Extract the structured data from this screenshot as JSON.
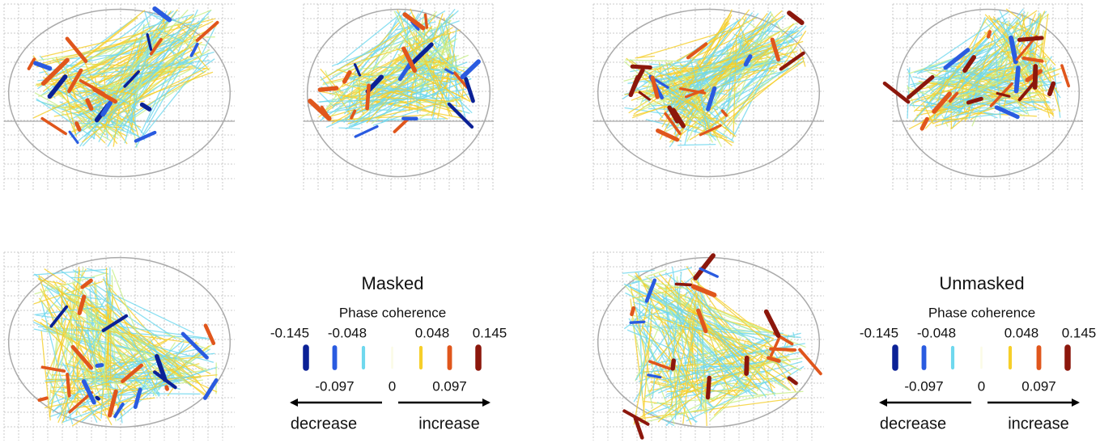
{
  "panels": [
    {
      "title": "Masked",
      "legend": {
        "title": "Phase coherence",
        "items": [
          {
            "value": -0.145,
            "color": "#0b2196"
          },
          {
            "value": -0.097,
            "color": "#2a5be0"
          },
          {
            "value": -0.048,
            "color": "#6fd8ee"
          },
          {
            "value": 0,
            "color": "#fbfbe6"
          },
          {
            "value": 0.048,
            "color": "#f6cf2a"
          },
          {
            "value": 0.097,
            "color": "#e0561c"
          },
          {
            "value": 0.145,
            "color": "#8c170c"
          }
        ],
        "decrease": "decrease",
        "increase": "increase"
      }
    },
    {
      "title": "Unmasked",
      "legend": {
        "title": "Phase coherence",
        "items": [
          {
            "value": -0.145,
            "color": "#0b2196"
          },
          {
            "value": -0.097,
            "color": "#2a5be0"
          },
          {
            "value": -0.048,
            "color": "#6fd8ee"
          },
          {
            "value": 0,
            "color": "#fbfbe6"
          },
          {
            "value": 0.048,
            "color": "#f6cf2a"
          },
          {
            "value": 0.097,
            "color": "#e0561c"
          },
          {
            "value": 0.145,
            "color": "#8c170c"
          }
        ],
        "decrease": "decrease",
        "increase": "increase"
      }
    }
  ]
}
